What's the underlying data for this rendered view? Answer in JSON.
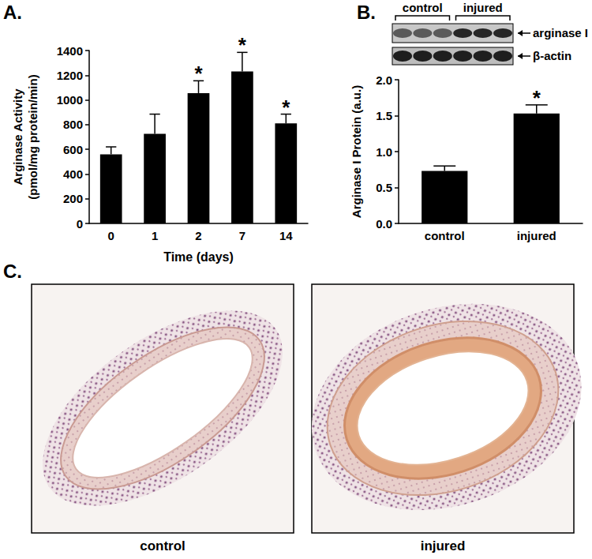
{
  "figure": {
    "panel_labels": [
      "A.",
      "B.",
      "C."
    ],
    "blot": {
      "groups": [
        "control",
        "injured"
      ],
      "bands": [
        "arginase I",
        "β-actin"
      ]
    },
    "micrographs": [
      "control",
      "injured"
    ]
  },
  "chart_data": [
    {
      "type": "bar",
      "categories": [
        "0",
        "1",
        "2",
        "7",
        "14"
      ],
      "values": [
        560,
        725,
        1055,
        1230,
        810
      ],
      "errors": [
        60,
        160,
        100,
        155,
        75
      ],
      "color": "#000000",
      "xlabel": "Time (days)",
      "ylabel": "Arginase Activity\n(pmol/mg protein/min)",
      "ylim": [
        0,
        1400
      ],
      "yticks": [
        0,
        200,
        400,
        600,
        800,
        1000,
        1200,
        1400
      ],
      "grid": false,
      "annotations": [
        {
          "category": "2",
          "text": "*"
        },
        {
          "category": "7",
          "text": "*"
        },
        {
          "category": "14",
          "text": "*"
        }
      ]
    },
    {
      "type": "bar",
      "categories": [
        "control",
        "injured"
      ],
      "values": [
        0.73,
        1.53
      ],
      "errors": [
        0.07,
        0.12
      ],
      "color": "#000000",
      "ylabel": "Arginase I Protein (a.u.)",
      "ylim": [
        0,
        2.0
      ],
      "yticks": [
        {
          "value": 0,
          "label": "0.0"
        },
        {
          "value": 0.5,
          "label": "0.5"
        },
        {
          "value": 1.0,
          "label": "1.0"
        },
        {
          "value": 1.5,
          "label": "1.5"
        },
        {
          "value": 2.0,
          "label": "2.0"
        }
      ],
      "grid": false,
      "annotations": [
        {
          "category": "injured",
          "text": "*"
        }
      ]
    }
  ]
}
